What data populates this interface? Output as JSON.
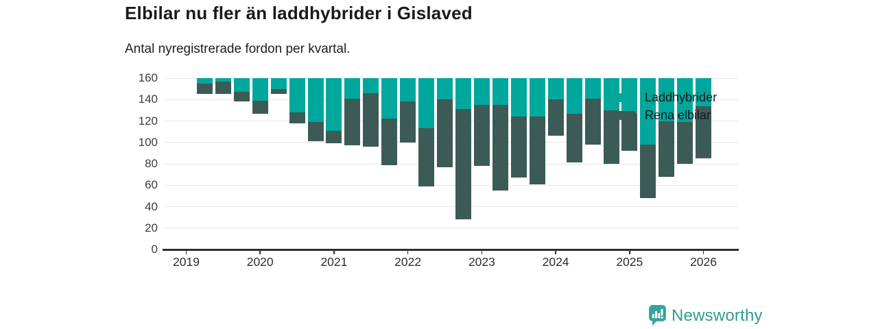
{
  "header": {
    "title": "Elbilar nu fler än laddhybrider i Gislaved",
    "subtitle": "Antal nyregistrerade fordon per kvartal."
  },
  "chart_data": {
    "type": "bar",
    "stacked": true,
    "title": "Elbilar nu fler än laddhybrider i Gislaved",
    "subtitle": "Antal nyregistrerade fordon per kvartal.",
    "xlabel": "",
    "ylabel": "",
    "ylim": [
      0,
      160
    ],
    "y_ticks": [
      0,
      20,
      40,
      60,
      80,
      100,
      120,
      140,
      160
    ],
    "grid": true,
    "legend_position": "top-right",
    "x_tick_labels": [
      "2019",
      "2020",
      "2021",
      "2022",
      "2023",
      "2024",
      "2025",
      "2026"
    ],
    "categories": [
      "2019 Q1",
      "2019 Q2",
      "2019 Q3",
      "2019 Q4",
      "2020 Q1",
      "2020 Q2",
      "2020 Q3",
      "2020 Q4",
      "2021 Q1",
      "2021 Q2",
      "2021 Q3",
      "2021 Q4",
      "2022 Q1",
      "2022 Q2",
      "2022 Q3",
      "2022 Q4",
      "2023 Q1",
      "2023 Q2",
      "2023 Q3",
      "2023 Q4",
      "2024 Q1",
      "2024 Q2",
      "2024 Q3",
      "2024 Q4",
      "2025 Q1",
      "2025 Q2",
      "2025 Q3",
      "2025 Q4",
      "2026 Q1"
    ],
    "series": [
      {
        "name": "Laddhybrider",
        "color": "#00a79c",
        "values": [
          0,
          5,
          3,
          13,
          21,
          10,
          32,
          41,
          49,
          19,
          14,
          38,
          22,
          47,
          20,
          29,
          25,
          25,
          36,
          36,
          20,
          33,
          19,
          30,
          33,
          62,
          40,
          41,
          26
        ]
      },
      {
        "name": "Rena elbilar",
        "color": "#3c5b56",
        "values": [
          0,
          10,
          12,
          9,
          12,
          5,
          10,
          18,
          12,
          44,
          50,
          43,
          38,
          54,
          63,
          103,
          57,
          80,
          57,
          63,
          34,
          46,
          43,
          50,
          35,
          50,
          52,
          39,
          49
        ]
      }
    ],
    "stack_bottom_series": "Rena elbilar"
  },
  "footer": {
    "brand": "Newsworthy",
    "brand_color": "#2f9b93",
    "icon_color": "#35a39b"
  }
}
